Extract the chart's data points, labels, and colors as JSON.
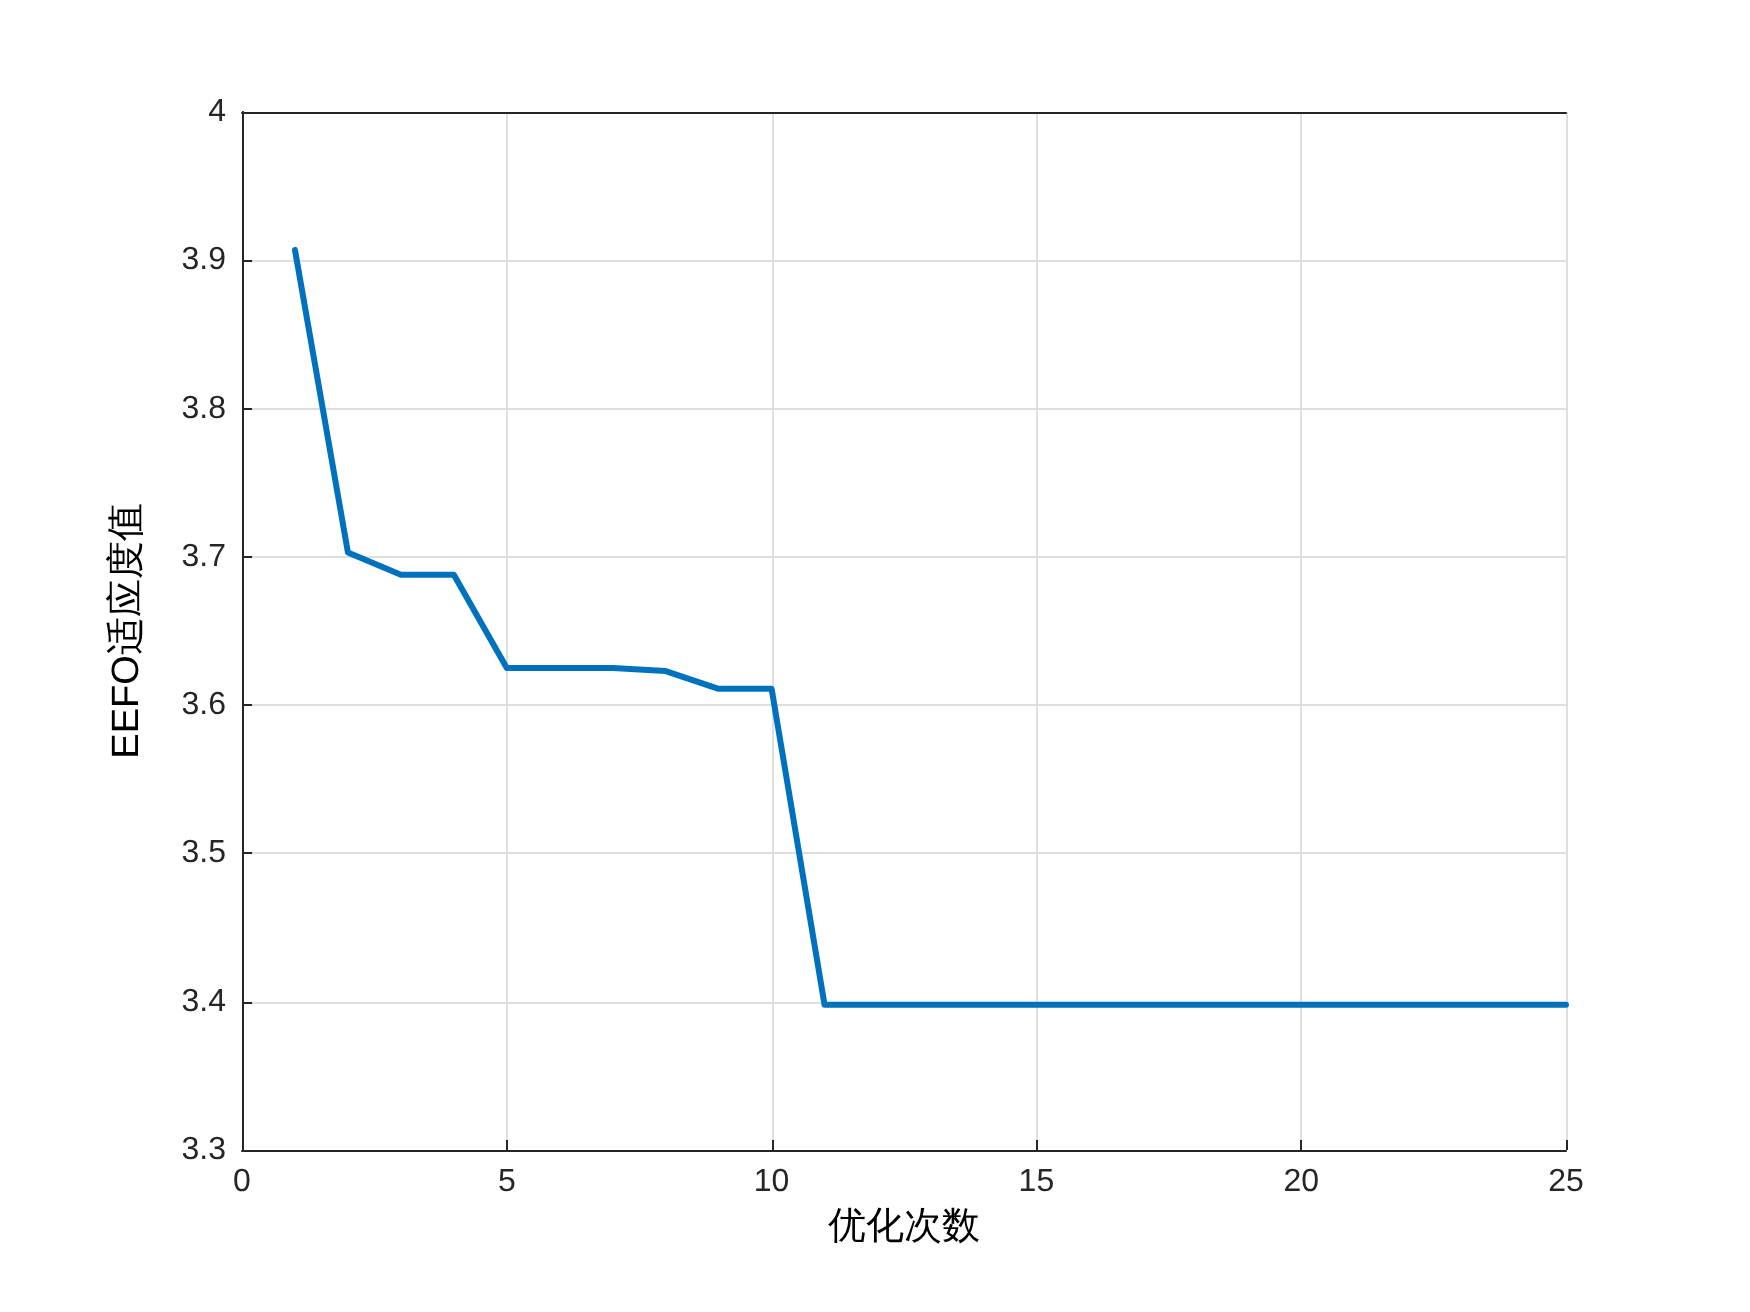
{
  "chart_data": {
    "type": "line",
    "xlabel": "优化次数",
    "ylabel": "EEFO适应度值",
    "x": [
      1,
      2,
      3,
      4,
      5,
      6,
      7,
      8,
      9,
      10,
      11,
      12,
      13,
      14,
      15,
      16,
      17,
      18,
      19,
      20,
      21,
      22,
      23,
      24,
      25
    ],
    "series": [
      {
        "color": "#0072bd",
        "values": [
          3.907,
          3.703,
          3.688,
          3.688,
          3.625,
          3.625,
          3.625,
          3.623,
          3.611,
          3.611,
          3.398,
          3.398,
          3.398,
          3.398,
          3.398,
          3.398,
          3.398,
          3.398,
          3.398,
          3.398,
          3.398,
          3.398,
          3.398,
          3.398,
          3.398
        ]
      }
    ],
    "xlim": [
      0,
      25
    ],
    "xticks": [
      0,
      5,
      10,
      15,
      20,
      25
    ],
    "ylim": [
      3.3,
      4
    ],
    "yticks": [
      3.3,
      3.4,
      3.5,
      3.6,
      3.7,
      3.8,
      3.9,
      4
    ],
    "grid": true,
    "marker": "none",
    "line_style": "solid"
  }
}
